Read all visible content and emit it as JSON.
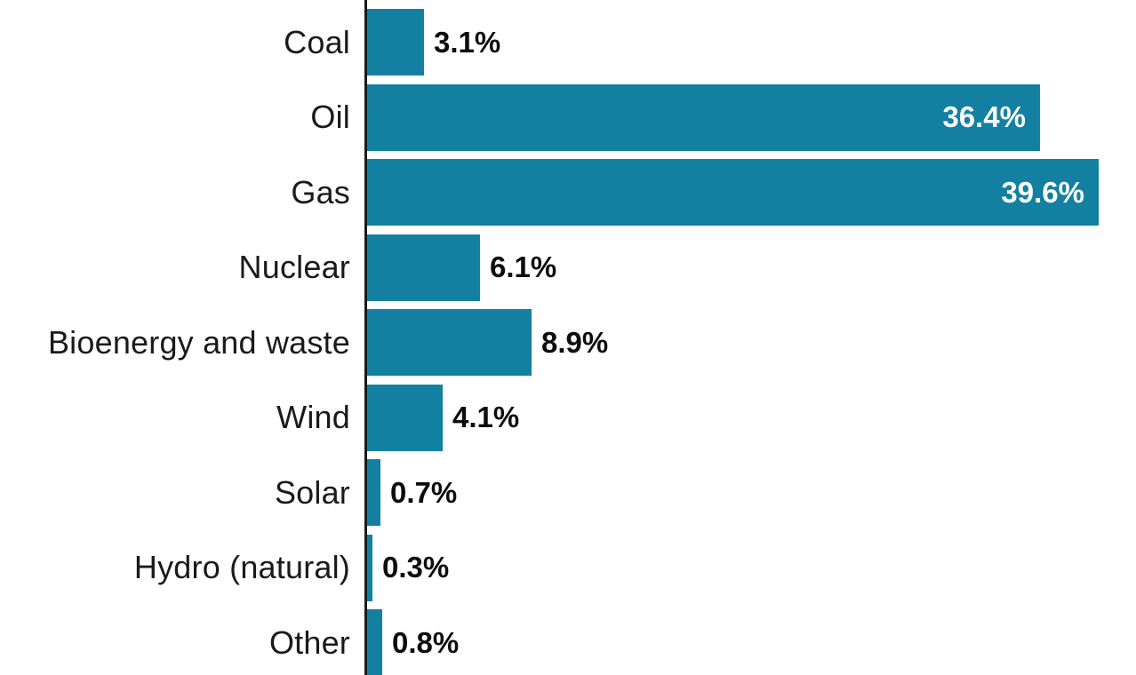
{
  "chart_data": {
    "type": "bar",
    "orientation": "horizontal",
    "categories": [
      "Coal",
      "Oil",
      "Gas",
      "Nuclear",
      "Bioenergy and waste",
      "Wind",
      "Solar",
      "Hydro (natural)",
      "Other"
    ],
    "values": [
      3.1,
      36.4,
      39.6,
      6.1,
      8.9,
      4.1,
      0.7,
      0.3,
      0.8
    ],
    "value_labels": [
      "3.1%",
      "36.4%",
      "39.6%",
      "6.1%",
      "8.9%",
      "4.1%",
      "0.7%",
      "0.3%",
      "0.8%"
    ],
    "xlim": [
      0,
      41.6
    ],
    "grid": false,
    "legend": false,
    "colors": {
      "bar": "#1380A1",
      "axis_line": "#1a1a1a",
      "category_label": "#1a1a1a",
      "value_label_inside": "#ffffff",
      "value_label_outside": "#0d0d0d",
      "background": "#ffffff"
    }
  }
}
